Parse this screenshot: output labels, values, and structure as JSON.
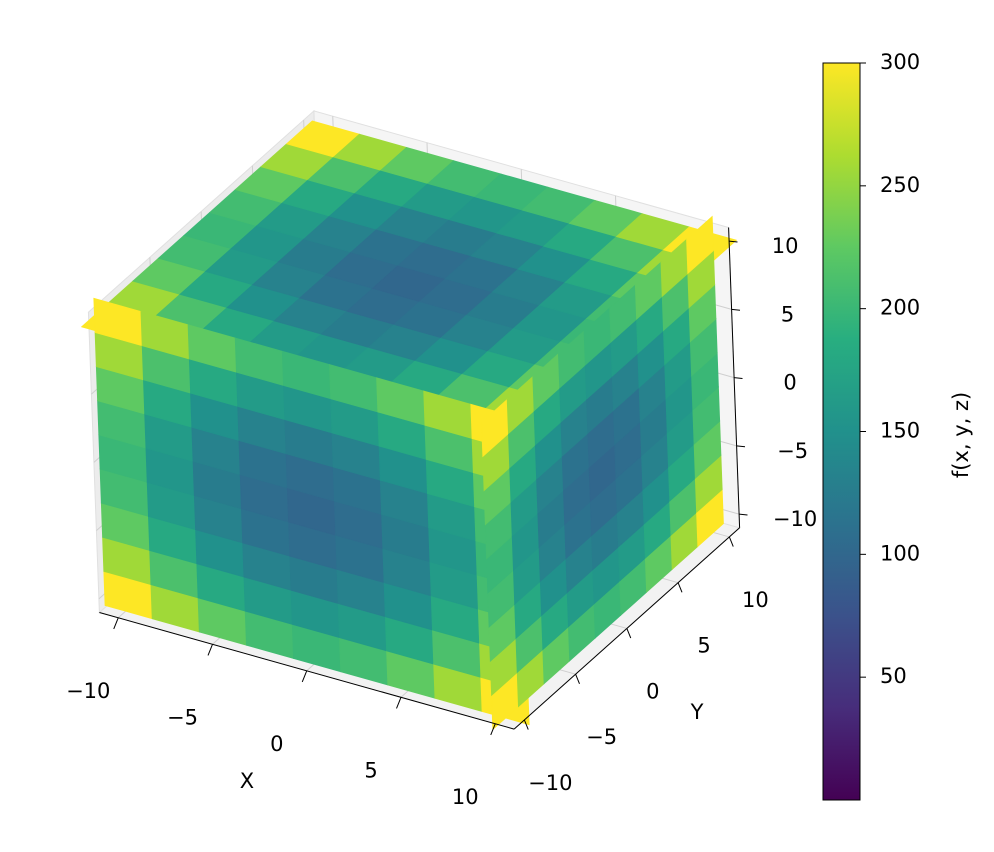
{
  "chart_data": {
    "type": "scatter3d",
    "xlabel": "X",
    "ylabel": "Y",
    "xlim": [
      -11,
      11
    ],
    "ylim": [
      -11,
      11
    ],
    "zlim": [
      -11,
      11
    ],
    "xticks": [
      {
        "value": -10,
        "label": "−10"
      },
      {
        "value": -5,
        "label": "−5"
      },
      0,
      5,
      10
    ],
    "yticks": [
      {
        "value": -10,
        "label": "−10"
      },
      {
        "value": -5,
        "label": "−5"
      },
      0,
      5,
      10
    ],
    "zticks": [
      {
        "value": -10,
        "label": "−10"
      },
      {
        "value": -5,
        "label": "−5"
      },
      0,
      5,
      10
    ],
    "grid": true,
    "colormap": "viridis",
    "colorbar": {
      "label": "f(x, y, z)",
      "lim": [
        0,
        300
      ],
      "ticks": [
        50,
        100,
        150,
        200,
        250,
        300
      ]
    },
    "grid_points": [
      -10,
      -7.5,
      -5,
      -2.5,
      0,
      2.5,
      5,
      7.5,
      10
    ],
    "faces": [
      {
        "z": 10,
        "values": [
          [
            300,
            256.25,
            225,
            206.25,
            200,
            206.25,
            225,
            256.25,
            300
          ],
          [
            256.25,
            212.5,
            181.25,
            162.5,
            156.25,
            162.5,
            181.25,
            212.5,
            256.25
          ],
          [
            225,
            181.25,
            150,
            131.25,
            125,
            131.25,
            150,
            181.25,
            225
          ],
          [
            206.25,
            162.5,
            131.25,
            112.5,
            106.25,
            112.5,
            131.25,
            162.5,
            206.25
          ],
          [
            200,
            156.25,
            125,
            106.25,
            100,
            106.25,
            125,
            156.25,
            200
          ],
          [
            206.25,
            162.5,
            131.25,
            112.5,
            106.25,
            112.5,
            131.25,
            162.5,
            206.25
          ],
          [
            225,
            181.25,
            150,
            131.25,
            125,
            131.25,
            150,
            181.25,
            225
          ],
          [
            256.25,
            212.5,
            181.25,
            162.5,
            156.25,
            162.5,
            181.25,
            212.5,
            256.25
          ],
          [
            300,
            256.25,
            225,
            206.25,
            200,
            206.25,
            225,
            256.25,
            300
          ]
        ]
      },
      {
        "y": -10,
        "values": [
          [
            300,
            256.25,
            225,
            206.25,
            200,
            206.25,
            225,
            256.25,
            300
          ],
          [
            256.25,
            212.5,
            181.25,
            162.5,
            156.25,
            162.5,
            181.25,
            212.5,
            256.25
          ],
          [
            225,
            181.25,
            150,
            131.25,
            125,
            131.25,
            150,
            181.25,
            225
          ],
          [
            206.25,
            162.5,
            131.25,
            112.5,
            106.25,
            112.5,
            131.25,
            162.5,
            206.25
          ],
          [
            200,
            156.25,
            125,
            106.25,
            100,
            106.25,
            125,
            156.25,
            200
          ],
          [
            206.25,
            162.5,
            131.25,
            112.5,
            106.25,
            112.5,
            131.25,
            162.5,
            206.25
          ],
          [
            225,
            181.25,
            150,
            131.25,
            125,
            131.25,
            150,
            181.25,
            225
          ],
          [
            256.25,
            212.5,
            181.25,
            162.5,
            156.25,
            162.5,
            181.25,
            212.5,
            256.25
          ],
          [
            300,
            256.25,
            225,
            206.25,
            200,
            206.25,
            225,
            256.25,
            300
          ]
        ]
      },
      {
        "x": 10,
        "values": [
          [
            300,
            256.25,
            225,
            206.25,
            200,
            206.25,
            225,
            256.25,
            300
          ],
          [
            256.25,
            212.5,
            181.25,
            162.5,
            156.25,
            162.5,
            181.25,
            212.5,
            256.25
          ],
          [
            225,
            181.25,
            150,
            131.25,
            125,
            131.25,
            150,
            181.25,
            225
          ],
          [
            206.25,
            162.5,
            131.25,
            112.5,
            106.25,
            112.5,
            131.25,
            162.5,
            206.25
          ],
          [
            200,
            156.25,
            125,
            106.25,
            100,
            106.25,
            125,
            156.25,
            200
          ],
          [
            206.25,
            162.5,
            131.25,
            112.5,
            106.25,
            112.5,
            131.25,
            162.5,
            206.25
          ],
          [
            225,
            181.25,
            150,
            131.25,
            125,
            131.25,
            150,
            181.25,
            225
          ],
          [
            256.25,
            212.5,
            181.25,
            162.5,
            156.25,
            162.5,
            181.25,
            212.5,
            256.25
          ],
          [
            300,
            256.25,
            225,
            206.25,
            200,
            206.25,
            225,
            256.25,
            300
          ]
        ]
      }
    ]
  }
}
